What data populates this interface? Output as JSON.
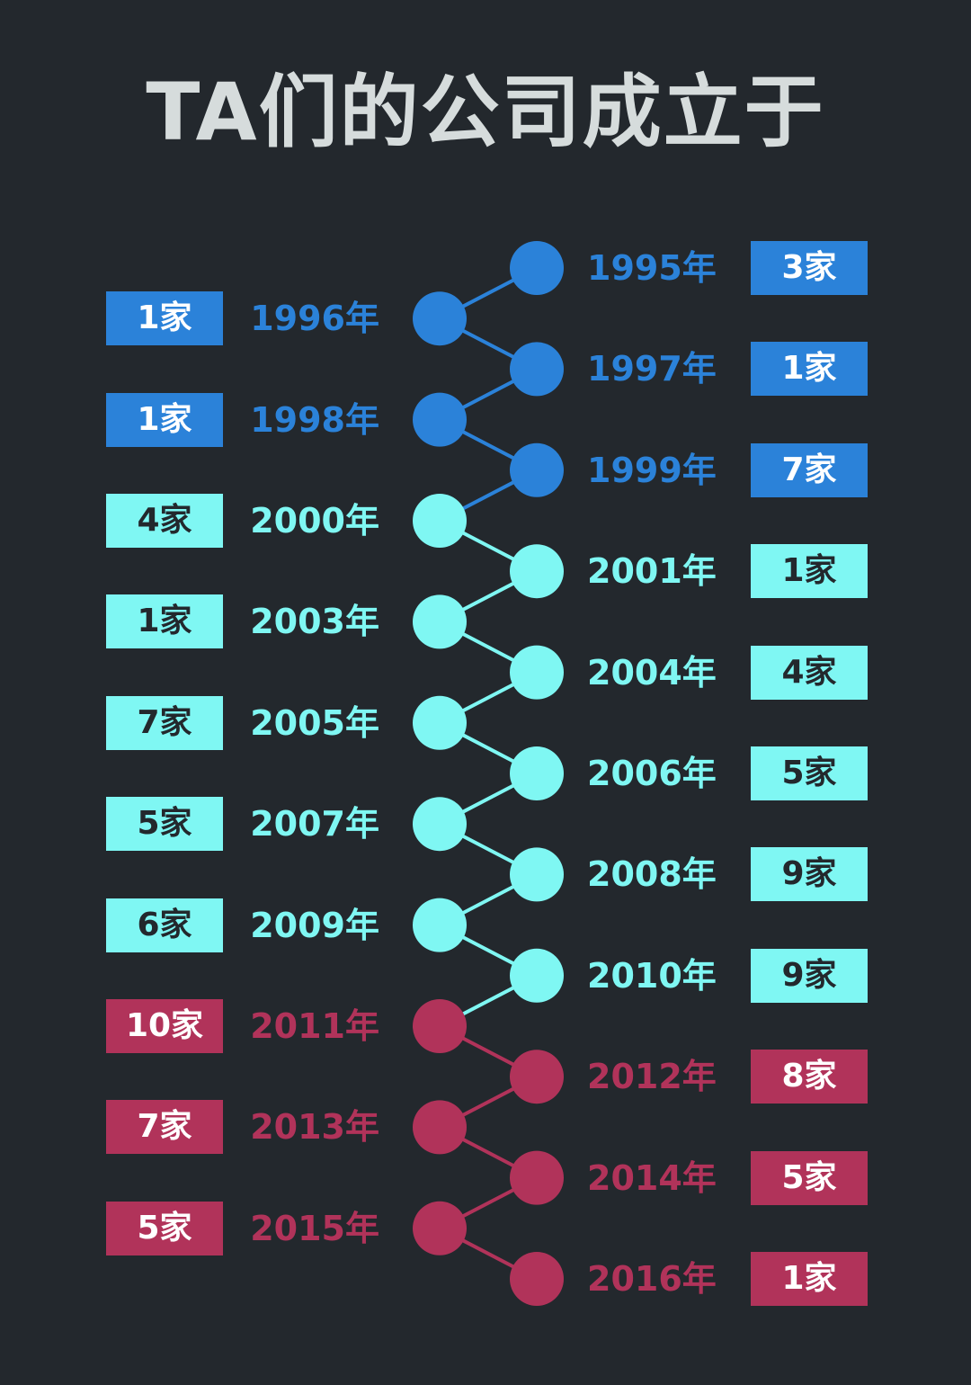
{
  "title": "TA们的公司成立于",
  "colors": {
    "background": "#23282d",
    "title": "#d6dcdc",
    "blue": "#2b82d9",
    "cyan": "#7ff7f3",
    "crimson": "#b1335a",
    "dark_text": "#23282d"
  },
  "entries": [
    {
      "year": "1995年",
      "count": "3家",
      "side": "right",
      "color": "blue"
    },
    {
      "year": "1996年",
      "count": "1家",
      "side": "left",
      "color": "blue"
    },
    {
      "year": "1997年",
      "count": "1家",
      "side": "right",
      "color": "blue"
    },
    {
      "year": "1998年",
      "count": "1家",
      "side": "left",
      "color": "blue"
    },
    {
      "year": "1999年",
      "count": "7家",
      "side": "right",
      "color": "blue"
    },
    {
      "year": "2000年",
      "count": "4家",
      "side": "left",
      "color": "cyan"
    },
    {
      "year": "2001年",
      "count": "1家",
      "side": "right",
      "color": "cyan"
    },
    {
      "year": "2003年",
      "count": "1家",
      "side": "left",
      "color": "cyan"
    },
    {
      "year": "2004年",
      "count": "4家",
      "side": "right",
      "color": "cyan"
    },
    {
      "year": "2005年",
      "count": "7家",
      "side": "left",
      "color": "cyan"
    },
    {
      "year": "2006年",
      "count": "5家",
      "side": "right",
      "color": "cyan"
    },
    {
      "year": "2007年",
      "count": "5家",
      "side": "left",
      "color": "cyan"
    },
    {
      "year": "2008年",
      "count": "9家",
      "side": "right",
      "color": "cyan"
    },
    {
      "year": "2009年",
      "count": "6家",
      "side": "left",
      "color": "cyan"
    },
    {
      "year": "2010年",
      "count": "9家",
      "side": "right",
      "color": "cyan"
    },
    {
      "year": "2011年",
      "count": "10家",
      "side": "left",
      "color": "crimson"
    },
    {
      "year": "2012年",
      "count": "8家",
      "side": "right",
      "color": "crimson"
    },
    {
      "year": "2013年",
      "count": "7家",
      "side": "left",
      "color": "crimson"
    },
    {
      "year": "2014年",
      "count": "5家",
      "side": "right",
      "color": "crimson"
    },
    {
      "year": "2015年",
      "count": "5家",
      "side": "left",
      "color": "crimson"
    },
    {
      "year": "2016年",
      "count": "1家",
      "side": "right",
      "color": "crimson"
    }
  ]
}
